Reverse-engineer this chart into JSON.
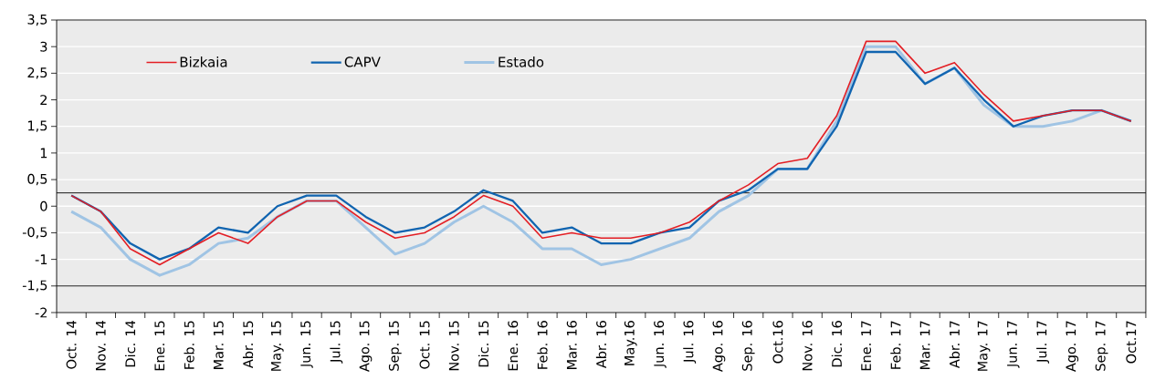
{
  "chart_data": {
    "type": "line",
    "categories": [
      "Oct. 14",
      "Nov. 14",
      "Dic. 14",
      "Ene. 15",
      "Feb. 15",
      "Mar. 15",
      "Abr. 15",
      "May. 15",
      "Jun. 15",
      "Jul. 15",
      "Ago. 15",
      "Sep. 15",
      "Oct. 15",
      "Nov. 15",
      "Dic. 15",
      "Ene. 16",
      "Feb. 16",
      "Mar. 16",
      "Abr. 16",
      "May.16",
      "Jun. 16",
      "Jul. 16",
      "Ago. 16",
      "Sep. 16",
      "Oct.16",
      "Nov. 16",
      "Dic. 16",
      "Ene. 17",
      "Feb. 17",
      "Mar. 17",
      "Abr. 17",
      "May. 17",
      "Jun. 17",
      "Jul. 17",
      "Ago. 17",
      "Sep. 17",
      "Oct.17"
    ],
    "series": [
      {
        "name": "Bizkaia",
        "color": "#e31e24",
        "values": [
          0.2,
          -0.1,
          -0.8,
          -1.1,
          -0.8,
          -0.5,
          -0.7,
          -0.2,
          0.1,
          0.1,
          -0.3,
          -0.6,
          -0.5,
          -0.2,
          0.2,
          0,
          -0.6,
          -0.5,
          -0.6,
          -0.6,
          -0.5,
          -0.3,
          0.1,
          0.4,
          0.8,
          0.9,
          1.7,
          3.1,
          3.1,
          2.5,
          2.7,
          2.1,
          1.6,
          1.7,
          1.8,
          1.8,
          1.6
        ]
      },
      {
        "name": "CAPV",
        "color": "#1064b0",
        "values": [
          0.2,
          -0.1,
          -0.7,
          -1.0,
          -0.8,
          -0.4,
          -0.5,
          0,
          0.2,
          0.2,
          -0.2,
          -0.5,
          -0.4,
          -0.1,
          0.3,
          0.1,
          -0.5,
          -0.4,
          -0.7,
          -0.7,
          -0.5,
          -0.4,
          0.1,
          0.3,
          0.7,
          0.7,
          1.5,
          2.9,
          2.9,
          2.3,
          2.6,
          2.0,
          1.5,
          1.7,
          1.8,
          1.8,
          1.6
        ]
      },
      {
        "name": "Estado",
        "color": "#a0c4e4",
        "values": [
          -0.1,
          -0.4,
          -1.0,
          -1.3,
          -1.1,
          -0.7,
          -0.6,
          -0.2,
          0.1,
          0.1,
          -0.4,
          -0.9,
          -0.7,
          -0.3,
          0,
          -0.3,
          -0.8,
          -0.8,
          -1.1,
          -1.0,
          -0.8,
          -0.6,
          -0.1,
          0.2,
          0.7,
          0.7,
          1.6,
          3.0,
          3.0,
          2.3,
          2.6,
          1.9,
          1.5,
          1.5,
          1.6,
          1.8,
          1.6
        ]
      }
    ],
    "ylim": [
      -2,
      3.5
    ],
    "yticks": [
      {
        "value": -2,
        "label": "-2"
      },
      {
        "value": -1.5,
        "label": "-1,5"
      },
      {
        "value": -1,
        "label": "-1"
      },
      {
        "value": -0.5,
        "label": "-0,5"
      },
      0,
      {
        "value": 0.5,
        "label": "0,5"
      },
      1,
      {
        "value": 1.5,
        "label": "1,5"
      },
      2,
      {
        "value": 2.5,
        "label": "2,5"
      },
      3,
      {
        "value": 3.5,
        "label": "3,5"
      }
    ],
    "grid": "y",
    "legend": "top left",
    "ref_lines": [
      {
        "axis": "y",
        "value": 0.25,
        "color": "#000000"
      },
      {
        "axis": "y",
        "value": -1.5,
        "color": "#000000"
      }
    ]
  }
}
